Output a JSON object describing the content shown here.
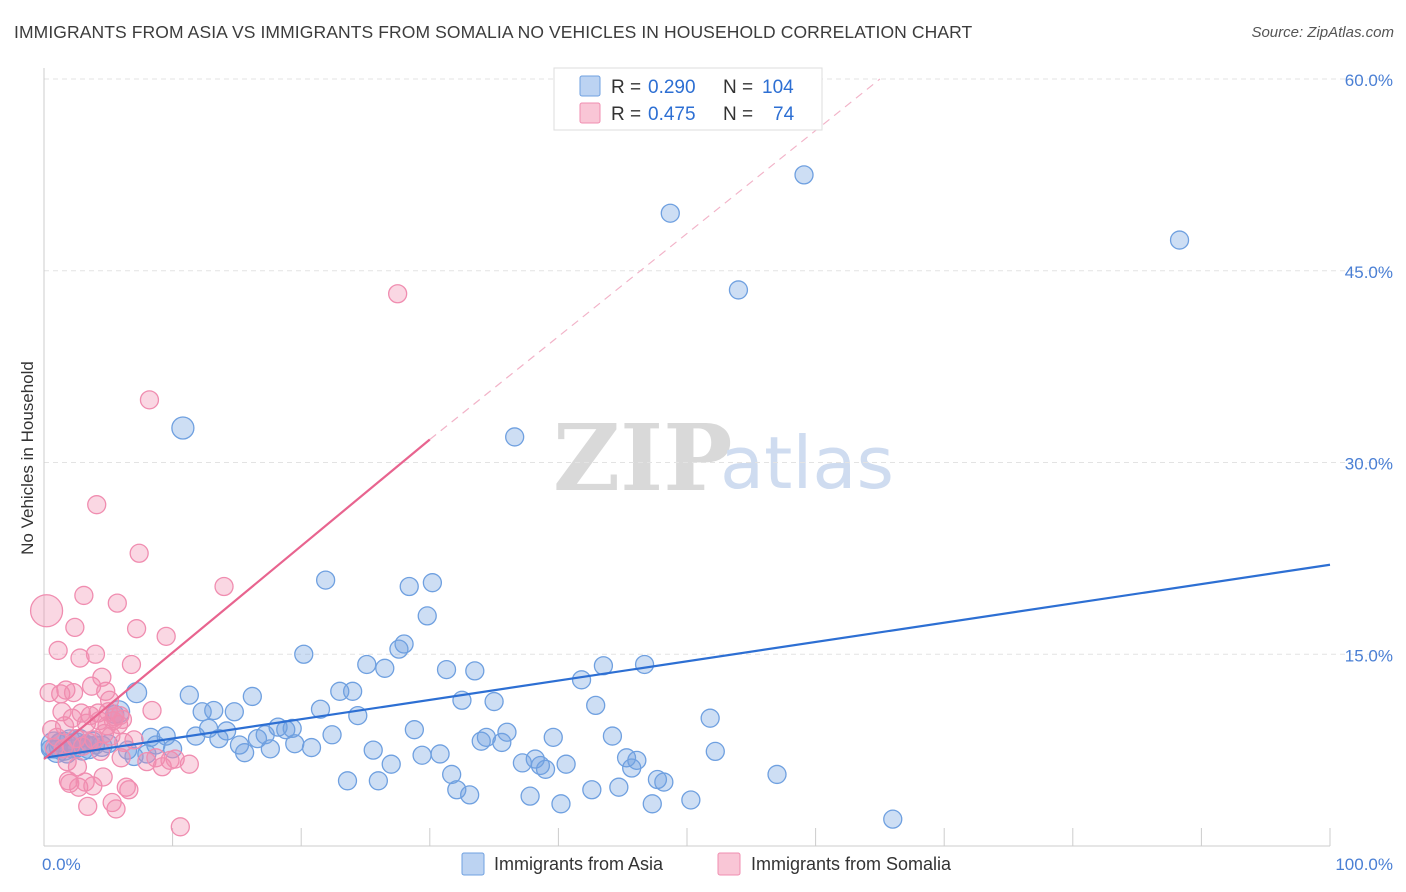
{
  "title": "IMMIGRANTS FROM ASIA VS IMMIGRANTS FROM SOMALIA NO VEHICLES IN HOUSEHOLD CORRELATION CHART",
  "source": "Source: ZipAtlas.com",
  "watermark": {
    "zip": "ZIP",
    "atlas": "atlas"
  },
  "colors": {
    "asia": "#6fa0e0",
    "asia_line": "#2d6fd3",
    "somalia": "#f08db0",
    "somalia_line": "#e8648f",
    "grid": "#e3e3e3",
    "axis_text": "#4a7fd4"
  },
  "legend": {
    "rows": [
      {
        "r_label": "R = ",
        "r_value": "0.290",
        "n_label": "N = ",
        "n_value": "104"
      },
      {
        "r_label": "R = ",
        "r_value": "0.475",
        "n_label": "N = ",
        "n_value": "74"
      }
    ]
  },
  "chart_data": {
    "type": "scatter",
    "title": "IMMIGRANTS FROM ASIA VS IMMIGRANTS FROM SOMALIA NO VEHICLES IN HOUSEHOLD CORRELATION CHART",
    "xlabel": "",
    "ylabel": "No Vehicles in Household",
    "xlim": [
      0,
      100
    ],
    "ylim": [
      0,
      60
    ],
    "x_tick_labels": [
      "0.0%",
      "100.0%"
    ],
    "y_ticks": [
      15,
      30,
      45,
      60
    ],
    "y_tick_labels": [
      "15.0%",
      "30.0%",
      "45.0%",
      "60.0%"
    ],
    "grid": true,
    "legend_position": "top-center",
    "series": [
      {
        "name": "Immigrants from Asia",
        "trend": {
          "x0": 0,
          "y0": 6.9,
          "x1": 100,
          "y1": 22.0
        },
        "points": [
          [
            0.5,
            7.6,
            9
          ],
          [
            0.8,
            7.9,
            13
          ],
          [
            1.0,
            7.4,
            11
          ],
          [
            1.2,
            8.1,
            9
          ],
          [
            1.5,
            7.8,
            14
          ],
          [
            1.8,
            7.2,
            9
          ],
          [
            2.0,
            8.3,
            10
          ],
          [
            2.2,
            7.6,
            9
          ],
          [
            2.5,
            7.9,
            12
          ],
          [
            2.8,
            8.4,
            9
          ],
          [
            3.0,
            7.5,
            10
          ],
          [
            3.2,
            8.0,
            9
          ],
          [
            3.5,
            7.7,
            11
          ],
          [
            3.8,
            8.2,
            9
          ],
          [
            4.0,
            7.9,
            9
          ],
          [
            4.5,
            7.8,
            10
          ],
          [
            5.0,
            8.0,
            9
          ],
          [
            5.5,
            10.3,
            9
          ],
          [
            5.8,
            10.5,
            11
          ],
          [
            6.5,
            7.5,
            9
          ],
          [
            7.0,
            7.0,
            9
          ],
          [
            7.2,
            12.0,
            10
          ],
          [
            8.0,
            7.2,
            9
          ],
          [
            8.3,
            8.5,
            9
          ],
          [
            8.7,
            7.9,
            9
          ],
          [
            9.5,
            8.6,
            9
          ],
          [
            10.0,
            7.6,
            9
          ],
          [
            10.8,
            32.7,
            11
          ],
          [
            11.3,
            11.8,
            9
          ],
          [
            11.8,
            8.6,
            9
          ],
          [
            12.3,
            10.5,
            9
          ],
          [
            12.8,
            9.2,
            9
          ],
          [
            13.2,
            10.6,
            9
          ],
          [
            13.6,
            8.4,
            9
          ],
          [
            14.2,
            9.0,
            9
          ],
          [
            14.8,
            10.5,
            9
          ],
          [
            15.2,
            7.9,
            9
          ],
          [
            15.6,
            7.3,
            9
          ],
          [
            16.2,
            11.7,
            9
          ],
          [
            16.6,
            8.4,
            9
          ],
          [
            17.2,
            8.7,
            9
          ],
          [
            17.6,
            7.6,
            9
          ],
          [
            18.2,
            9.3,
            9
          ],
          [
            18.8,
            9.1,
            9
          ],
          [
            19.3,
            9.2,
            9
          ],
          [
            19.5,
            8.0,
            9
          ],
          [
            20.2,
            15.0,
            9
          ],
          [
            20.8,
            7.7,
            9
          ],
          [
            21.5,
            10.7,
            9
          ],
          [
            21.9,
            20.8,
            9
          ],
          [
            22.4,
            8.7,
            9
          ],
          [
            23.0,
            12.1,
            9
          ],
          [
            23.6,
            5.1,
            9
          ],
          [
            24.0,
            12.1,
            9
          ],
          [
            24.4,
            10.2,
            9
          ],
          [
            25.1,
            14.2,
            9
          ],
          [
            25.6,
            7.5,
            9
          ],
          [
            26.0,
            5.1,
            9
          ],
          [
            26.5,
            13.9,
            9
          ],
          [
            27.0,
            6.4,
            9
          ],
          [
            27.6,
            15.4,
            9
          ],
          [
            28.0,
            15.8,
            9
          ],
          [
            28.4,
            20.3,
            9
          ],
          [
            28.8,
            9.1,
            9
          ],
          [
            29.4,
            7.1,
            9
          ],
          [
            29.8,
            18.0,
            9
          ],
          [
            30.2,
            20.6,
            9
          ],
          [
            30.8,
            7.2,
            9
          ],
          [
            31.3,
            13.8,
            9
          ],
          [
            31.7,
            5.6,
            9
          ],
          [
            32.1,
            4.4,
            9
          ],
          [
            32.5,
            11.4,
            9
          ],
          [
            33.1,
            4.0,
            9
          ],
          [
            33.5,
            13.7,
            9
          ],
          [
            34.0,
            8.2,
            9
          ],
          [
            34.4,
            8.5,
            9
          ],
          [
            35.0,
            11.3,
            9
          ],
          [
            35.6,
            8.1,
            9
          ],
          [
            36.0,
            8.9,
            9
          ],
          [
            36.6,
            32.0,
            9
          ],
          [
            37.2,
            6.5,
            9
          ],
          [
            37.8,
            3.9,
            9
          ],
          [
            38.2,
            6.8,
            9
          ],
          [
            38.6,
            6.3,
            9
          ],
          [
            39.0,
            6.0,
            9
          ],
          [
            39.6,
            8.5,
            9
          ],
          [
            40.2,
            3.3,
            9
          ],
          [
            40.6,
            6.4,
            9
          ],
          [
            41.8,
            13.0,
            9
          ],
          [
            42.6,
            4.4,
            9
          ],
          [
            42.9,
            11.0,
            9
          ],
          [
            43.5,
            14.1,
            9
          ],
          [
            44.2,
            8.6,
            9
          ],
          [
            44.7,
            4.6,
            9
          ],
          [
            45.3,
            6.9,
            9
          ],
          [
            45.7,
            6.1,
            9
          ],
          [
            46.1,
            6.7,
            9
          ],
          [
            46.7,
            14.2,
            9
          ],
          [
            47.3,
            3.3,
            9
          ],
          [
            47.7,
            5.2,
            9
          ],
          [
            48.2,
            5.0,
            9
          ],
          [
            48.7,
            49.5,
            9
          ],
          [
            50.3,
            3.6,
            9
          ],
          [
            51.8,
            10.0,
            9
          ],
          [
            52.2,
            7.4,
            9
          ],
          [
            54.0,
            43.5,
            9
          ],
          [
            57.0,
            5.6,
            9
          ],
          [
            59.1,
            52.5,
            9
          ],
          [
            66.0,
            2.1,
            9
          ],
          [
            88.3,
            47.4,
            9
          ]
        ]
      },
      {
        "name": "Immigrants from Somalia",
        "trend": {
          "x0": 0,
          "y0": 6.8,
          "x1": 30,
          "y1": 31.8,
          "dash_x1": 65,
          "dash_y1": 60.0
        },
        "points": [
          [
            0.2,
            18.4,
            16
          ],
          [
            0.4,
            12.0,
            9
          ],
          [
            0.6,
            9.1,
            9
          ],
          [
            0.8,
            7.7,
            9
          ],
          [
            1.0,
            8.5,
            9
          ],
          [
            1.1,
            15.3,
            9
          ],
          [
            1.3,
            11.9,
            9
          ],
          [
            1.4,
            10.5,
            9
          ],
          [
            1.5,
            7.6,
            9
          ],
          [
            1.6,
            9.4,
            9
          ],
          [
            1.7,
            12.2,
            9
          ],
          [
            1.8,
            6.6,
            9
          ],
          [
            1.9,
            5.1,
            9
          ],
          [
            2.0,
            4.9,
            9
          ],
          [
            2.1,
            7.9,
            9
          ],
          [
            2.2,
            10.0,
            9
          ],
          [
            2.3,
            12.0,
            9
          ],
          [
            2.4,
            17.1,
            9
          ],
          [
            2.5,
            8.4,
            9
          ],
          [
            2.6,
            6.2,
            9
          ],
          [
            2.7,
            4.6,
            9
          ],
          [
            2.8,
            14.7,
            9
          ],
          [
            2.9,
            10.4,
            9
          ],
          [
            3.0,
            7.8,
            9
          ],
          [
            3.1,
            19.6,
            9
          ],
          [
            3.2,
            5.0,
            9
          ],
          [
            3.3,
            9.6,
            9
          ],
          [
            3.4,
            3.1,
            9
          ],
          [
            3.5,
            8.1,
            9
          ],
          [
            3.6,
            10.2,
            9
          ],
          [
            3.7,
            12.5,
            9
          ],
          [
            3.8,
            4.7,
            9
          ],
          [
            3.9,
            8.3,
            9
          ],
          [
            4.0,
            15.0,
            9
          ],
          [
            4.1,
            26.7,
            9
          ],
          [
            4.2,
            10.4,
            9
          ],
          [
            4.3,
            9.8,
            9
          ],
          [
            4.4,
            7.4,
            9
          ],
          [
            4.5,
            13.2,
            9
          ],
          [
            4.6,
            5.4,
            9
          ],
          [
            4.7,
            8.8,
            9
          ],
          [
            4.8,
            12.1,
            9
          ],
          [
            4.9,
            9.4,
            9
          ],
          [
            5.0,
            10.5,
            9
          ],
          [
            5.1,
            11.4,
            9
          ],
          [
            5.2,
            8.6,
            9
          ],
          [
            5.3,
            3.4,
            9
          ],
          [
            5.4,
            9.8,
            9
          ],
          [
            5.5,
            10.1,
            9
          ],
          [
            5.6,
            2.9,
            9
          ],
          [
            5.7,
            19.0,
            9
          ],
          [
            5.8,
            9.5,
            9
          ],
          [
            5.9,
            10.2,
            9
          ],
          [
            6.0,
            6.9,
            9
          ],
          [
            6.2,
            8.1,
            9
          ],
          [
            6.4,
            4.6,
            9
          ],
          [
            6.6,
            4.4,
            9
          ],
          [
            6.8,
            14.2,
            9
          ],
          [
            7.0,
            8.3,
            9
          ],
          [
            7.2,
            17.0,
            9
          ],
          [
            7.4,
            22.9,
            9
          ],
          [
            8.0,
            6.6,
            9
          ],
          [
            8.2,
            34.9,
            9
          ],
          [
            8.7,
            6.9,
            9
          ],
          [
            9.2,
            6.2,
            9
          ],
          [
            9.5,
            16.4,
            9
          ],
          [
            9.8,
            6.7,
            9
          ],
          [
            10.2,
            6.8,
            9
          ],
          [
            10.6,
            1.5,
            9
          ],
          [
            11.3,
            6.4,
            9
          ],
          [
            14.0,
            20.3,
            9
          ],
          [
            27.5,
            43.2,
            9
          ],
          [
            8.4,
            10.6,
            9
          ],
          [
            6.1,
            9.9,
            9
          ]
        ]
      }
    ]
  }
}
